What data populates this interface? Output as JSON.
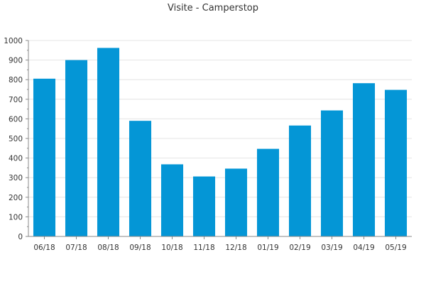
{
  "chart_data": {
    "type": "bar",
    "title": "Visite - Camperstop",
    "xlabel": "",
    "ylabel": "",
    "categories": [
      "06/18",
      "07/18",
      "08/18",
      "09/18",
      "10/18",
      "11/18",
      "12/18",
      "01/19",
      "02/19",
      "03/19",
      "04/19",
      "05/19"
    ],
    "values": [
      805,
      900,
      962,
      590,
      368,
      306,
      346,
      447,
      566,
      643,
      782,
      748
    ],
    "ylim": [
      0,
      1000
    ],
    "yticks": [
      0,
      100,
      200,
      300,
      400,
      500,
      600,
      700,
      800,
      900,
      1000
    ],
    "grid": true,
    "legend": "none",
    "bar_color": "#0496d6",
    "grid_color": "#e4e4e4",
    "axis_color": "#888888"
  }
}
